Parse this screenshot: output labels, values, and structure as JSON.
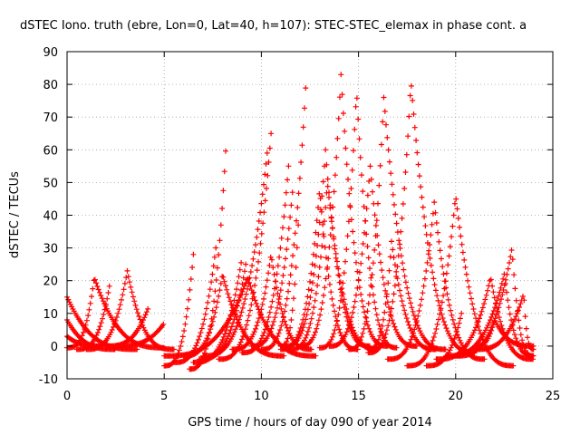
{
  "chart_data": {
    "type": "scatter",
    "title": "dSTEC Iono. truth (ebre, Lon=0, Lat=40, h=107): STEC-STEC_elemax in phase cont. a",
    "xlabel": "GPS time / hours of day 090 of year 2014",
    "ylabel": "dSTEC  / TECUs",
    "xlim": [
      0,
      25
    ],
    "ylim": [
      -10,
      90
    ],
    "x_ticks": [
      0,
      5,
      10,
      15,
      20,
      25
    ],
    "y_ticks": [
      -10,
      0,
      10,
      20,
      30,
      40,
      50,
      60,
      70,
      80,
      90
    ],
    "grid": true,
    "marker": "+",
    "series_color": "#ff0000",
    "arcs": [
      {
        "t0": 0.0,
        "tmax": 0.0,
        "t1": 3.6,
        "ymax": 15,
        "ymin": -1
      },
      {
        "t0": 0.0,
        "tmax": 0.0,
        "t1": 2.5,
        "ymax": 8,
        "ymin": -1
      },
      {
        "t0": 0.0,
        "tmax": 0.0,
        "t1": 1.8,
        "ymax": 3,
        "ymin": 0
      },
      {
        "t0": 0.0,
        "tmax": 1.4,
        "t1": 5.0,
        "ymax": 21,
        "ymin": -0.5
      },
      {
        "t0": 0.5,
        "tmax": 2.2,
        "t1": 2.2,
        "ymax": 19,
        "ymin": -1
      },
      {
        "t0": 1.0,
        "tmax": 3.1,
        "t1": 5.5,
        "ymax": 23,
        "ymin": -1
      },
      {
        "t0": 2.0,
        "tmax": 4.2,
        "t1": 4.2,
        "ymax": 12,
        "ymin": 0
      },
      {
        "t0": 2.5,
        "tmax": 5.0,
        "t1": 5.0,
        "ymax": 7,
        "ymin": 0
      },
      {
        "t0": 5.0,
        "tmax": 6.5,
        "t1": 6.5,
        "ymax": 28,
        "ymin": -6
      },
      {
        "t0": 6.3,
        "tmax": 8.2,
        "t1": 8.2,
        "ymax": 64,
        "ymin": -7
      },
      {
        "t0": 5.5,
        "tmax": 7.7,
        "t1": 7.7,
        "ymax": 32,
        "ymin": -5
      },
      {
        "t0": 6.5,
        "tmax": 9.0,
        "t1": 9.0,
        "ymax": 27,
        "ymin": -5
      },
      {
        "t0": 6.0,
        "tmax": 8.0,
        "t1": 11.2,
        "ymax": 22,
        "ymin": -3
      },
      {
        "t0": 6.8,
        "tmax": 9.2,
        "t1": 9.2,
        "ymax": 25,
        "ymin": -4
      },
      {
        "t0": 5.0,
        "tmax": 9.3,
        "t1": 12.8,
        "ymax": 21,
        "ymin": -3
      },
      {
        "t0": 7.8,
        "tmax": 10.5,
        "t1": 10.5,
        "ymax": 65,
        "ymin": -4
      },
      {
        "t0": 7.0,
        "tmax": 10.3,
        "t1": 10.3,
        "ymax": 59,
        "ymin": -3
      },
      {
        "t0": 8.5,
        "tmax": 10.5,
        "t1": 12.6,
        "ymax": 28,
        "ymin": -1
      },
      {
        "t0": 9.0,
        "tmax": 11.4,
        "t1": 11.4,
        "ymax": 55,
        "ymin": -2
      },
      {
        "t0": 9.5,
        "tmax": 11.6,
        "t1": 11.6,
        "ymax": 47,
        "ymin": 0
      },
      {
        "t0": 10.0,
        "tmax": 12.3,
        "t1": 12.3,
        "ymax": 81,
        "ymin": -1
      },
      {
        "t0": 11.0,
        "tmax": 11.9,
        "t1": 11.9,
        "ymax": 37,
        "ymin": 0
      },
      {
        "t0": 11.2,
        "tmax": 13.3,
        "t1": 15.6,
        "ymax": 60,
        "ymin": 0
      },
      {
        "t0": 11.0,
        "tmax": 13.0,
        "t1": 15.0,
        "ymax": 48,
        "ymin": -1
      },
      {
        "t0": 11.5,
        "tmax": 13.4,
        "t1": 16.0,
        "ymax": 50,
        "ymin": -1
      },
      {
        "t0": 12.0,
        "tmax": 14.1,
        "t1": 16.5,
        "ymax": 83,
        "ymin": 0
      },
      {
        "t0": 13.0,
        "tmax": 14.9,
        "t1": 17.0,
        "ymax": 78,
        "ymin": -0.5
      },
      {
        "t0": 13.5,
        "tmax": 15.6,
        "t1": 18.0,
        "ymax": 55,
        "ymin": 0
      },
      {
        "t0": 14.5,
        "tmax": 16.3,
        "t1": 19.5,
        "ymax": 76,
        "ymin": -1
      },
      {
        "t0": 15.5,
        "tmax": 16.7,
        "t1": 19.0,
        "ymax": 32,
        "ymin": -1
      },
      {
        "t0": 15.5,
        "tmax": 17.7,
        "t1": 21.0,
        "ymax": 81,
        "ymin": -2
      },
      {
        "t0": 16.5,
        "tmax": 18.9,
        "t1": 21.5,
        "ymax": 44,
        "ymin": -4
      },
      {
        "t0": 17.5,
        "tmax": 20.0,
        "t1": 23.0,
        "ymax": 46,
        "ymin": -6
      },
      {
        "t0": 18.5,
        "tmax": 20.3,
        "t1": 20.3,
        "ymax": 10,
        "ymin": -6
      },
      {
        "t0": 19.0,
        "tmax": 21.8,
        "t1": 24.0,
        "ymax": 21,
        "ymin": -4
      },
      {
        "t0": 19.5,
        "tmax": 22.5,
        "t1": 24.0,
        "ymax": 22,
        "ymin": -3
      },
      {
        "t0": 20.0,
        "tmax": 22.9,
        "t1": 24.0,
        "ymax": 30,
        "ymin": -3
      },
      {
        "t0": 21.0,
        "tmax": 23.5,
        "t1": 24.0,
        "ymax": 16,
        "ymin": -1
      },
      {
        "t0": 21.0,
        "tmax": 22.0,
        "t1": 24.0,
        "ymax": 8,
        "ymin": 0
      }
    ]
  }
}
